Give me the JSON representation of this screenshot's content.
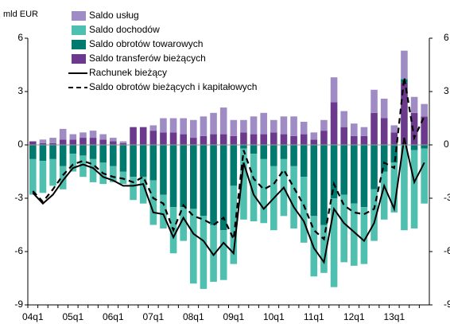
{
  "chart_data": {
    "type": "bar",
    "y_label": "mld EUR",
    "categories": [
      "04q1",
      null,
      null,
      null,
      "05q1",
      null,
      null,
      null,
      "06q1",
      null,
      null,
      null,
      "07q1",
      null,
      null,
      null,
      "08q1",
      null,
      null,
      null,
      "09q1",
      null,
      null,
      null,
      "10q1",
      null,
      null,
      null,
      "11q1",
      null,
      null,
      null,
      "12q1",
      null,
      null,
      null,
      "13q1",
      null,
      null,
      null
    ],
    "ylim": [
      -9,
      6
    ],
    "yticks": [
      -9,
      -6,
      -3,
      0,
      3,
      6
    ],
    "y2lim": [
      -9,
      6
    ],
    "y2ticks": [
      -9,
      -6,
      -3,
      0,
      3,
      6
    ],
    "series": [
      {
        "name": "Saldo usług",
        "type": "bar",
        "color": "#a08cc4",
        "values": [
          0,
          0.2,
          0.3,
          0.6,
          0.3,
          0.3,
          0.4,
          0.3,
          0.2,
          0.1,
          0,
          0,
          0.3,
          0.8,
          0.8,
          0.9,
          1.0,
          1.1,
          1.2,
          1.5,
          0.9,
          0.7,
          1.0,
          1.2,
          0.7,
          1.0,
          1.1,
          0.7,
          0.4,
          0.6,
          1.4,
          0.9,
          0.7,
          0.5,
          1.3,
          1.1,
          0.4,
          1.6,
          0.9,
          0.7
        ]
      },
      {
        "name": "Saldo dochodów",
        "type": "bar",
        "color": "#4fbfb0",
        "values": [
          -2.0,
          -1.8,
          -1.5,
          -1.3,
          -1.0,
          -1.2,
          -1.3,
          -1.2,
          -0.9,
          -0.7,
          -1.3,
          -1.5,
          -2.5,
          -1.9,
          -2.6,
          -1.9,
          -4.2,
          -4.1,
          -3.2,
          -2.8,
          -4.4,
          -4.0,
          -3.8,
          -3.6,
          -3.6,
          -3.2,
          -3.5,
          -3.7,
          -3.4,
          -2.7,
          -5.0,
          -3.8,
          -3.5,
          -3.2,
          -2.9,
          -2.7,
          -2.8,
          -4.8,
          -4.4,
          -3.1
        ]
      },
      {
        "name": "Saldo obrotów towarowych",
        "type": "bar",
        "color": "#007a6e",
        "values": [
          -0.8,
          -0.9,
          -0.8,
          -1.2,
          -0.5,
          -0.6,
          -0.8,
          -1.0,
          -1.2,
          -1.5,
          -1.8,
          -1.8,
          -2.0,
          -2.8,
          -3.5,
          -3.5,
          -3.6,
          -4.0,
          -4.5,
          -4.8,
          -2.3,
          -0.2,
          -0.5,
          -0.8,
          -1.2,
          -0.8,
          -1.2,
          -1.8,
          -4.0,
          -4.5,
          -3.0,
          -2.8,
          -3.3,
          -3.5,
          -2.5,
          -1.5,
          -1.0,
          0.2,
          -0.3,
          -0.2
        ]
      },
      {
        "name": "Saldo transferów bieżących",
        "type": "bar",
        "color": "#6b3a8c",
        "values": [
          0.2,
          0.1,
          0.1,
          0.3,
          0.3,
          0.4,
          0.4,
          0.3,
          0.2,
          0.1,
          1.0,
          1.0,
          0.8,
          0.7,
          0.7,
          0.6,
          0.4,
          0.5,
          0.6,
          0.6,
          0.5,
          0.7,
          0.6,
          0.6,
          0.7,
          0.6,
          0.5,
          0.6,
          0.3,
          0.8,
          2.4,
          1.0,
          0.5,
          0.5,
          1.8,
          1.5,
          0.7,
          3.5,
          1.8,
          1.6
        ]
      },
      {
        "name": "Rachunek bieżący",
        "type": "line",
        "color": "#000000",
        "dashed": false,
        "values": [
          -2.7,
          -3.3,
          -2.8,
          -2.0,
          -1.3,
          -1.1,
          -1.3,
          -1.8,
          -2.0,
          -2.3,
          -2.3,
          -2.2,
          -3.8,
          -3.9,
          -5.2,
          -4.1,
          -5.0,
          -5.4,
          -6.2,
          -5.5,
          -6.1,
          -1.0,
          -2.8,
          -3.6,
          -3.0,
          -2.4,
          -3.5,
          -4.3,
          -5.8,
          -6.6,
          -3.6,
          -4.4,
          -4.9,
          -5.4,
          -4.4,
          -2.3,
          -3.6,
          0.4,
          -2.1,
          -1.0
        ]
      },
      {
        "name": "Saldo obrotów bieżących i kapitałowych",
        "type": "line",
        "color": "#000000",
        "dashed": true,
        "values": [
          -2.6,
          -3.2,
          -2.5,
          -1.7,
          -1.1,
          -0.9,
          -1.1,
          -1.6,
          -1.8,
          -1.9,
          -2.1,
          -1.8,
          -3.0,
          -3.3,
          -4.8,
          -3.4,
          -4.0,
          -4.2,
          -4.5,
          -4.1,
          -5.3,
          -0.3,
          -1.9,
          -2.5,
          -2.2,
          -1.4,
          -2.4,
          -3.4,
          -4.8,
          -5.3,
          -2.2,
          -3.4,
          -3.8,
          -3.9,
          -3.6,
          -1.0,
          -1.3,
          3.8,
          0.4,
          1.6
        ]
      }
    ]
  }
}
